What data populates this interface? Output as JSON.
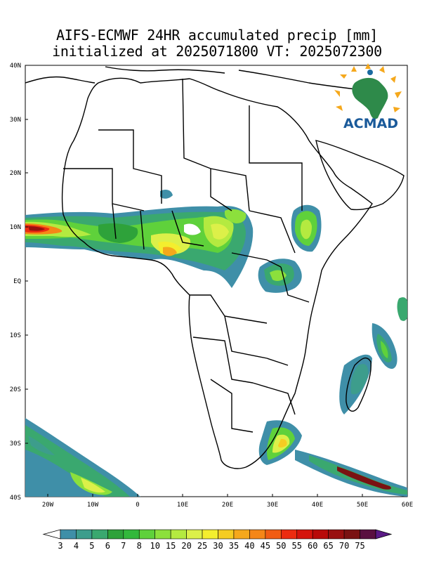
{
  "title": {
    "line1": "AIFS-ECMWF 24HR accumulated precip [mm]",
    "line2": "initialized at 2025071800 VT: 2025072300"
  },
  "axes": {
    "lat_labels": [
      "40N",
      "30N",
      "20N",
      "10N",
      "EQ",
      "10S",
      "20S",
      "30S",
      "40S"
    ],
    "lon_labels": [
      "20W",
      "10W",
      "0",
      "10E",
      "20E",
      "30E",
      "40E",
      "50E",
      "60E"
    ]
  },
  "logo": {
    "text": "ACMAD",
    "icon": "africa-sun-logo-icon"
  },
  "colorbar": {
    "labels": [
      "3",
      "4",
      "5",
      "6",
      "7",
      "8",
      "10",
      "15",
      "20",
      "25",
      "30",
      "35",
      "40",
      "45",
      "50",
      "55",
      "60",
      "65",
      "70",
      "75"
    ],
    "colors": [
      "#3f8fa8",
      "#3d9d8c",
      "#3aa86f",
      "#2ea23a",
      "#33b83c",
      "#5fd13b",
      "#8ce03c",
      "#b4ea40",
      "#dcf049",
      "#f4ee2e",
      "#f5cc22",
      "#f5a81c",
      "#f58617",
      "#f15c13",
      "#ec2c10",
      "#d5140c",
      "#b80a09",
      "#991010",
      "#7a1212",
      "#5a1040"
    ],
    "under_color": "#ffffff",
    "over_color": "#5a1a86"
  }
}
